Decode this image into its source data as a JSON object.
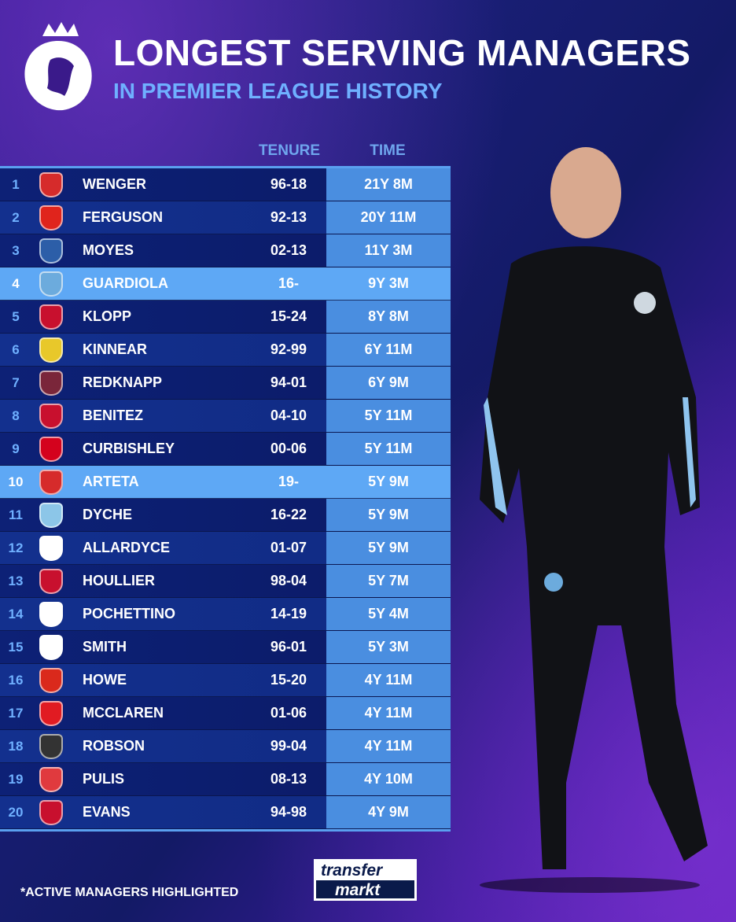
{
  "header": {
    "title": "LONGEST SERVING MANAGERS",
    "subtitle": "IN PREMIER LEAGUE HISTORY",
    "logo": "premier-league-lion-logo"
  },
  "columns": {
    "tenure": "TENURE",
    "time": "TIME"
  },
  "rows": [
    {
      "rank": "1",
      "name": "WENGER",
      "tenure": "96-18",
      "time": "21Y 8M",
      "club": "arsenal",
      "crest": "#d62b2b",
      "active": false
    },
    {
      "rank": "2",
      "name": "FERGUSON",
      "tenure": "92-13",
      "time": "20Y 11M",
      "club": "manchester-united",
      "crest": "#e0241c",
      "active": false
    },
    {
      "rank": "3",
      "name": "MOYES",
      "tenure": "02-13",
      "time": "11Y 3M",
      "club": "everton",
      "crest": "#2c5ea8",
      "active": false
    },
    {
      "rank": "4",
      "name": "GUARDIOLA",
      "tenure": "16-",
      "time": "9Y 3M",
      "club": "manchester-city",
      "crest": "#6cabdd",
      "active": true
    },
    {
      "rank": "5",
      "name": "KLOPP",
      "tenure": "15-24",
      "time": "8Y 8M",
      "club": "liverpool",
      "crest": "#c8102e",
      "active": false
    },
    {
      "rank": "6",
      "name": "KINNEAR",
      "tenure": "92-99",
      "time": "6Y 11M",
      "club": "wimbledon",
      "crest": "#e8c82a",
      "active": false
    },
    {
      "rank": "7",
      "name": "REDKNAPP",
      "tenure": "94-01",
      "time": "6Y 9M",
      "club": "west-ham",
      "crest": "#7a263a",
      "active": false
    },
    {
      "rank": "8",
      "name": "BENITEZ",
      "tenure": "04-10",
      "time": "5Y 11M",
      "club": "liverpool",
      "crest": "#c8102e",
      "active": false
    },
    {
      "rank": "9",
      "name": "CURBISHLEY",
      "tenure": "00-06",
      "time": "5Y 11M",
      "club": "charlton",
      "crest": "#d4021d",
      "active": false
    },
    {
      "rank": "10",
      "name": "ARTETA",
      "tenure": "19-",
      "time": "5Y 9M",
      "club": "arsenal",
      "crest": "#d62b2b",
      "active": true
    },
    {
      "rank": "11",
      "name": "DYCHE",
      "tenure": "16-22",
      "time": "5Y 9M",
      "club": "burnley",
      "crest": "#8cc6e8",
      "active": false
    },
    {
      "rank": "12",
      "name": "ALLARDYCE",
      "tenure": "01-07",
      "time": "5Y 9M",
      "club": "bolton",
      "crest": "#ffffff",
      "active": false
    },
    {
      "rank": "13",
      "name": "HOULLIER",
      "tenure": "98-04",
      "time": "5Y 7M",
      "club": "liverpool",
      "crest": "#c8102e",
      "active": false
    },
    {
      "rank": "14",
      "name": "POCHETTINO",
      "tenure": "14-19",
      "time": "5Y 4M",
      "club": "tottenham",
      "crest": "#ffffff",
      "active": false
    },
    {
      "rank": "15",
      "name": "SMITH",
      "tenure": "96-01",
      "time": "5Y 3M",
      "club": "derby",
      "crest": "#ffffff",
      "active": false
    },
    {
      "rank": "16",
      "name": "HOWE",
      "tenure": "15-20",
      "time": "4Y 11M",
      "club": "bournemouth",
      "crest": "#da291c",
      "active": false
    },
    {
      "rank": "17",
      "name": "MCCLAREN",
      "tenure": "01-06",
      "time": "4Y 11M",
      "club": "middlesbrough",
      "crest": "#e11b22",
      "active": false
    },
    {
      "rank": "18",
      "name": "ROBSON",
      "tenure": "99-04",
      "time": "4Y 11M",
      "club": "newcastle",
      "crest": "#333333",
      "active": false
    },
    {
      "rank": "19",
      "name": "PULIS",
      "tenure": "08-13",
      "time": "4Y 10M",
      "club": "stoke",
      "crest": "#e03a3e",
      "active": false
    },
    {
      "rank": "20",
      "name": "EVANS",
      "tenure": "94-98",
      "time": "4Y 9M",
      "club": "liverpool",
      "crest": "#c8102e",
      "active": false
    }
  ],
  "footer": {
    "note": "*ACTIVE MANAGERS HIGHLIGHTED",
    "brand_top": "transfer",
    "brand_bottom": "markt"
  },
  "colors": {
    "highlight": "#5ea8f5",
    "time_cell": "#4a8ee0",
    "accent": "#6fb0ff"
  }
}
